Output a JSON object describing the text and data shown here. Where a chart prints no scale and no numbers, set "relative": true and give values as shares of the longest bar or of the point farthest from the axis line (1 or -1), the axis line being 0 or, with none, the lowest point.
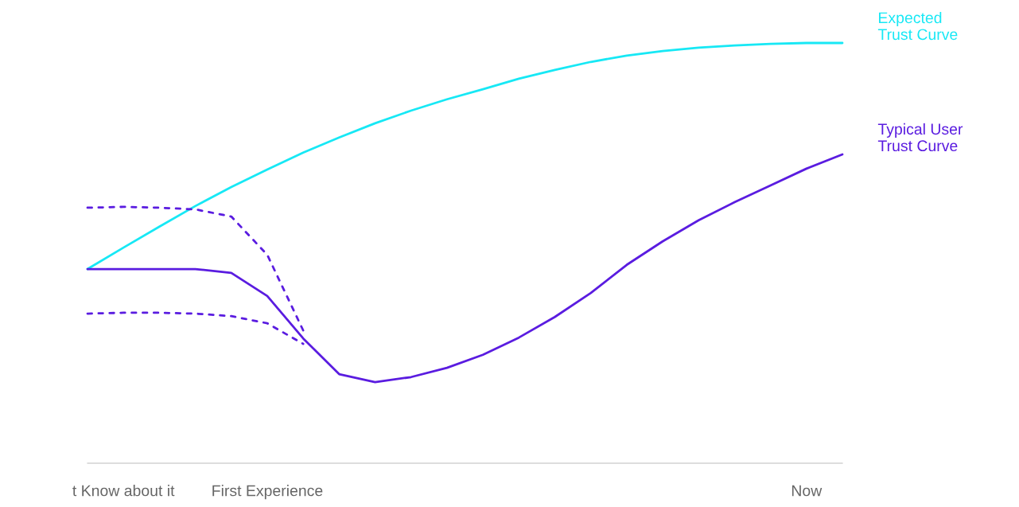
{
  "chart_data": {
    "type": "line",
    "relative": true,
    "grid": false,
    "legend": false,
    "marker": "none",
    "categories": [
      null,
      "t Know about it",
      null,
      null,
      null,
      "First Experience",
      null,
      null,
      null,
      null,
      null,
      null,
      null,
      null,
      null,
      null,
      null,
      null,
      null,
      null,
      "Now",
      null
    ],
    "series": [
      {
        "name": "Expected\nTrust Curve",
        "color": "#17e8f5",
        "line_style": "solid",
        "values": [
          0.462,
          0.513,
          0.563,
          0.612,
          0.657,
          0.699,
          0.739,
          0.775,
          0.809,
          0.839,
          0.866,
          0.89,
          0.915,
          0.936,
          0.955,
          0.97,
          0.981,
          0.989,
          0.994,
          0.998,
          1,
          1
        ]
      },
      {
        "name": "Typical User\nTrust Curve",
        "color": "#5a1ce0",
        "line_style": "solid",
        "values": [
          0.462,
          0.462,
          0.462,
          0.462,
          0.453,
          0.398,
          0.297,
          0.212,
          0.193,
          0.205,
          0.227,
          0.258,
          0.299,
          0.348,
          0.405,
          0.472,
          0.528,
          0.578,
          0.621,
          0.661,
          0.701,
          0.735
        ]
      },
      {
        "color": "#5a1ce0",
        "line_style": "dotted",
        "values": [
          0.608,
          0.61,
          0.608,
          0.604,
          0.587,
          0.496,
          0.316,
          null,
          null,
          null,
          null,
          null,
          null,
          null,
          null,
          null,
          null,
          null,
          null,
          null,
          null,
          null
        ]
      },
      {
        "color": "#5a1ce0",
        "line_style": "dotted",
        "values": [
          0.356,
          0.358,
          0.358,
          0.356,
          0.35,
          0.333,
          0.284,
          null,
          null,
          null,
          null,
          null,
          null,
          null,
          null,
          null,
          null,
          null,
          null,
          null,
          null,
          null
        ]
      }
    ]
  }
}
